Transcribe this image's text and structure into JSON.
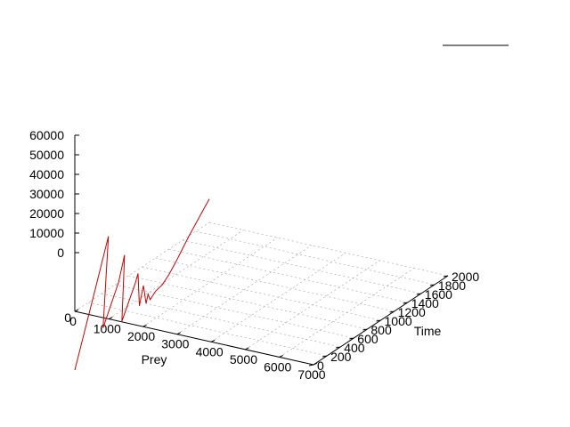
{
  "chart_data": {
    "type": "line",
    "dimensions": 3,
    "axes": {
      "x": {
        "label": "Prey",
        "range": [
          0,
          7000
        ],
        "ticks": [
          "0",
          "1000",
          "2000",
          "3000",
          "4000",
          "5000",
          "6000",
          "7000"
        ]
      },
      "y": {
        "label": "Time",
        "range": [
          0,
          2000
        ],
        "ticks": [
          "0",
          "200",
          "400",
          "600",
          "800",
          "1000",
          "1200",
          "1400",
          "1600",
          "1800",
          "2000"
        ]
      },
      "z": {
        "label": "",
        "range": [
          0,
          60000
        ],
        "ticks": [
          "0",
          "10000",
          "20000",
          "30000",
          "40000",
          "50000",
          "60000"
        ]
      }
    },
    "grid": true,
    "legend": {
      "position": "top-right",
      "entries": [
        {
          "label": "",
          "color": "#000000"
        }
      ]
    },
    "series": [
      {
        "color": "#cc0000",
        "points": [
          {
            "prey": 0,
            "time": 0,
            "z": 0
          },
          {
            "prey": 0,
            "time": 300,
            "z": 34000
          },
          {
            "prey": 0,
            "time": 500,
            "z": 57000
          },
          {
            "prey": 0,
            "time": 420,
            "z": 12000
          },
          {
            "prey": 0,
            "time": 650,
            "z": 30000
          },
          {
            "prey": 0,
            "time": 740,
            "z": 42000
          },
          {
            "prey": 0,
            "time": 700,
            "z": 9000
          },
          {
            "prey": 0,
            "time": 900,
            "z": 24000
          },
          {
            "prey": 0,
            "time": 940,
            "z": 28000
          },
          {
            "prey": 0,
            "time": 960,
            "z": 11000
          },
          {
            "prey": 0,
            "time": 1020,
            "z": 20000
          },
          {
            "prey": 0,
            "time": 1060,
            "z": 10000
          },
          {
            "prey": 0,
            "time": 1090,
            "z": 14000
          },
          {
            "prey": 0,
            "time": 1120,
            "z": 10500
          },
          {
            "prey": 0,
            "time": 1200,
            "z": 13000
          },
          {
            "prey": 0,
            "time": 1300,
            "z": 14000
          },
          {
            "prey": 0,
            "time": 1400,
            "z": 17000
          },
          {
            "prey": 0,
            "time": 1500,
            "z": 21000
          },
          {
            "prey": 0,
            "time": 1600,
            "z": 25500
          },
          {
            "prey": 0,
            "time": 1700,
            "z": 30000
          },
          {
            "prey": 0,
            "time": 1850,
            "z": 36000
          },
          {
            "prey": 0,
            "time": 2000,
            "z": 42000
          }
        ]
      }
    ]
  }
}
